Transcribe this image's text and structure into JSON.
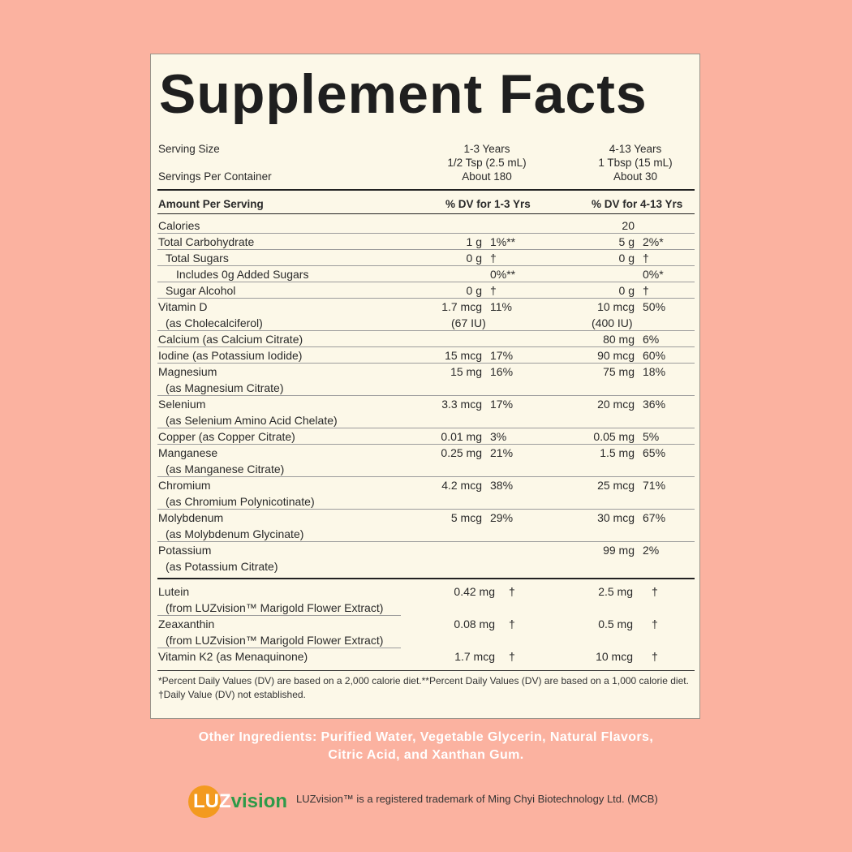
{
  "title": "Supplement Facts",
  "serving": {
    "size_label": "Serving Size",
    "per_container_label": "Servings Per Container",
    "col1": {
      "age": "1-3 Years",
      "size": "1/2 Tsp (2.5 mL)",
      "servings": "About 180"
    },
    "col2": {
      "age": "4-13 Years",
      "size": "1 Tbsp (15 mL)",
      "servings": "About 30"
    }
  },
  "header": {
    "amount": "Amount Per Serving",
    "dv1": "% DV for 1-3 Yrs",
    "dv2": "% DV for 4-13 Yrs"
  },
  "nutrients": [
    {
      "name": "Calories",
      "name2": "",
      "indent": 0,
      "a1": "",
      "d1": "",
      "a2": "20",
      "d2": ""
    },
    {
      "name": "Total Carbohydrate",
      "name2": "",
      "indent": 0,
      "a1": "1 g",
      "d1": "1%**",
      "a2": "5 g",
      "d2": "2%*"
    },
    {
      "name": "Total Sugars",
      "name2": "",
      "indent": 1,
      "a1": "0 g",
      "d1": "†",
      "a2": "0 g",
      "d2": "†"
    },
    {
      "name": "Includes 0g Added Sugars",
      "name2": "",
      "indent": 2,
      "a1": "",
      "d1": "0%**",
      "a2": "",
      "d2": "0%*"
    },
    {
      "name": "Sugar Alcohol",
      "name2": "",
      "indent": 1,
      "a1": "0 g",
      "d1": "†",
      "a2": "0 g",
      "d2": "†"
    },
    {
      "name": "Vitamin D",
      "name2": "(as Cholecalciferol)",
      "indent": 0,
      "a1": "1.7 mcg",
      "a1b": "(67 IU)",
      "d1": "11%",
      "a2": "10 mcg",
      "a2b": "(400 IU)",
      "d2": "50%"
    },
    {
      "name": "Calcium (as Calcium Citrate)",
      "name2": "",
      "indent": 0,
      "a1": "",
      "d1": "",
      "a2": "80 mg",
      "d2": "6%"
    },
    {
      "name": "Iodine (as Potassium Iodide)",
      "name2": "",
      "indent": 0,
      "a1": "15 mcg",
      "d1": "17%",
      "a2": "90 mcg",
      "d2": "60%"
    },
    {
      "name": "Magnesium",
      "name2": "(as Magnesium Citrate)",
      "indent": 0,
      "a1": "15 mg",
      "d1": "16%",
      "a2": "75 mg",
      "d2": "18%"
    },
    {
      "name": "Selenium",
      "name2": "(as Selenium Amino Acid Chelate)",
      "indent": 0,
      "a1": "3.3 mcg",
      "d1": "17%",
      "a2": "20 mcg",
      "d2": "36%"
    },
    {
      "name": "Copper (as Copper Citrate)",
      "name2": "",
      "indent": 0,
      "a1": "0.01 mg",
      "d1": "3%",
      "a2": "0.05 mg",
      "d2": "5%"
    },
    {
      "name": "Manganese",
      "name2": "(as Manganese Citrate)",
      "indent": 0,
      "a1": "0.25 mg",
      "d1": "21%",
      "a2": "1.5 mg",
      "d2": "65%"
    },
    {
      "name": "Chromium",
      "name2": "(as Chromium Polynicotinate)",
      "indent": 0,
      "a1": "4.2 mcg",
      "d1": "38%",
      "a2": "25 mcg",
      "d2": "71%"
    },
    {
      "name": "Molybdenum",
      "name2": "(as Molybdenum Glycinate)",
      "indent": 0,
      "a1": "5 mcg",
      "d1": "29%",
      "a2": "30 mcg",
      "d2": "67%"
    },
    {
      "name": "Potassium",
      "name2": "(as Potassium Citrate)",
      "indent": 0,
      "a1": "",
      "d1": "",
      "a2": "99 mg",
      "d2": "2%"
    }
  ],
  "other_nutrients": [
    {
      "name": "Lutein",
      "name2": "(from LUZvision™ Marigold Flower Extract)",
      "a1": "0.42 mg",
      "d1": "†",
      "a2": "2.5 mg",
      "d2": "†"
    },
    {
      "name": "Zeaxanthin",
      "name2": "(from LUZvision™ Marigold Flower Extract)",
      "a1": "0.08 mg",
      "d1": "†",
      "a2": "0.5 mg",
      "d2": "†"
    },
    {
      "name": "Vitamin K2 (as Menaquinone)",
      "name2": "",
      "a1": "1.7 mcg",
      "d1": "†",
      "a2": "10 mcg",
      "d2": "†"
    }
  ],
  "footnotes": {
    "line1": "*Percent Daily Values (DV) are based on a 2,000 calorie diet.**Percent Daily Values (DV) are based on a 1,000 calorie diet.",
    "line2": "†Daily Value (DV) not established."
  },
  "other_ingredients": {
    "line1": "Other Ingredients: Purified Water, Vegetable Glycerin, Natural Flavors,",
    "line2": "Citric Acid, and Xanthan Gum."
  },
  "brand": {
    "logo_a": "LUZ",
    "logo_b": "vision",
    "trademark": "LUZvision™ is a registered trademark of Ming Chyi Biotechnology Ltd. (MCB)",
    "logo_colors": {
      "sun": "#f39a1f",
      "vision": "#2e9a49"
    }
  },
  "colors": {
    "background": "#fbb2a0",
    "panel": "#fcf8e8"
  }
}
